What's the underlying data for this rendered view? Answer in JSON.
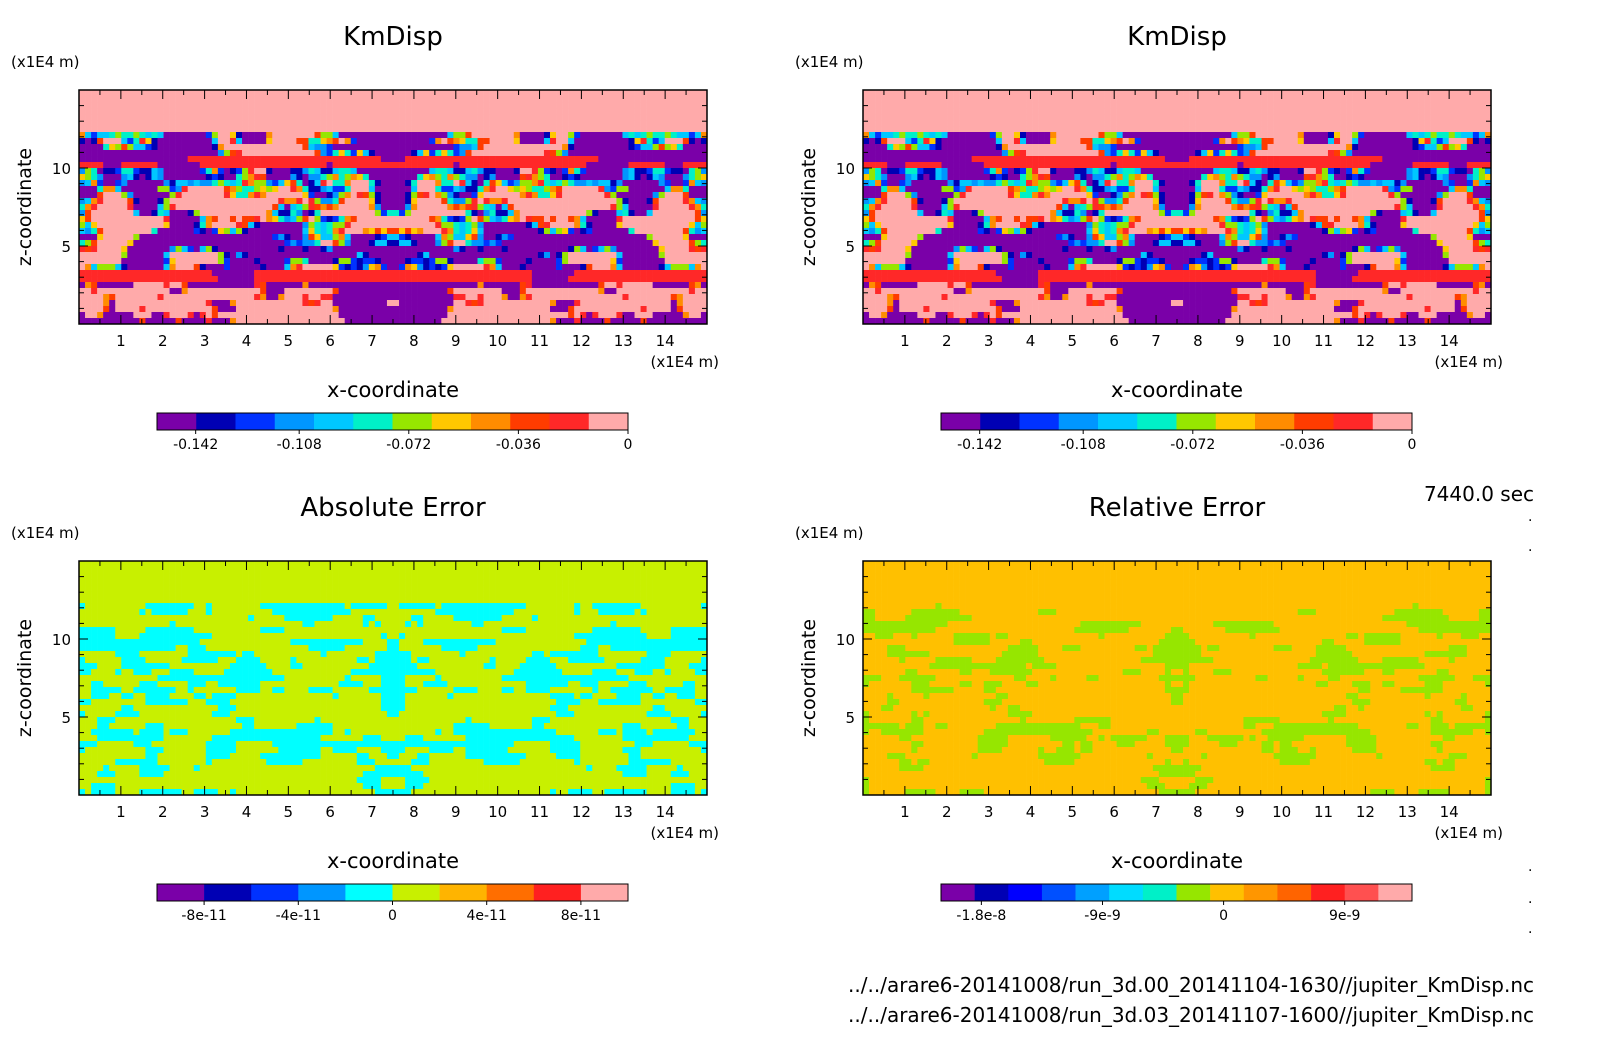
{
  "time_label": "7440.0 sec",
  "file_paths": [
    "../../arare6-20141008/run_3d.00_20141104-1630//jupiter_KmDisp.nc",
    "../../arare6-20141008/run_3d.03_20141107-1600//jupiter_KmDisp.nc"
  ],
  "chart_data": [
    {
      "type": "heatmap",
      "title": "KmDisp",
      "xlabel": "x-coordinate",
      "ylabel": "z-coordinate",
      "x_unit": "(x1E4 m)",
      "y_unit": "(x1E4 m)",
      "xlim": [
        0,
        15
      ],
      "ylim": [
        0,
        15
      ],
      "x_ticks": [
        1,
        2,
        3,
        4,
        5,
        6,
        7,
        8,
        9,
        10,
        11,
        12,
        13,
        14
      ],
      "y_ticks": [
        5,
        10
      ],
      "colorbar": {
        "colors": [
          "#7a00a8",
          "#0000b4",
          "#0032ff",
          "#0096ff",
          "#00c8ff",
          "#00f0c8",
          "#96e600",
          "#ffc800",
          "#ff8c00",
          "#ff3c00",
          "#ff2828",
          "#ffaaaa"
        ],
        "tick_values": [
          -0.142,
          -0.108,
          -0.072,
          -0.036,
          0
        ],
        "tick_labels": [
          "-0.142",
          "-0.108",
          "-0.072",
          "-0.036",
          "0"
        ],
        "range": [
          -0.1547,
          0
        ]
      },
      "pattern": "field"
    },
    {
      "type": "heatmap",
      "title": "KmDisp",
      "xlabel": "x-coordinate",
      "ylabel": "z-coordinate",
      "x_unit": "(x1E4 m)",
      "y_unit": "(x1E4 m)",
      "xlim": [
        0,
        15
      ],
      "ylim": [
        0,
        15
      ],
      "x_ticks": [
        1,
        2,
        3,
        4,
        5,
        6,
        7,
        8,
        9,
        10,
        11,
        12,
        13,
        14
      ],
      "y_ticks": [
        5,
        10
      ],
      "colorbar": {
        "colors": [
          "#7a00a8",
          "#0000b4",
          "#0032ff",
          "#0096ff",
          "#00c8ff",
          "#00f0c8",
          "#96e600",
          "#ffc800",
          "#ff8c00",
          "#ff3c00",
          "#ff2828",
          "#ffaaaa"
        ],
        "tick_values": [
          -0.142,
          -0.108,
          -0.072,
          -0.036,
          0
        ],
        "tick_labels": [
          "-0.142",
          "-0.108",
          "-0.072",
          "-0.036",
          "0"
        ],
        "range": [
          -0.1547,
          0
        ]
      },
      "pattern": "field"
    },
    {
      "type": "heatmap",
      "title": "Absolute Error",
      "xlabel": "x-coordinate",
      "ylabel": "z-coordinate",
      "x_unit": "(x1E4 m)",
      "y_unit": "(x1E4 m)",
      "xlim": [
        0,
        15
      ],
      "ylim": [
        0,
        15
      ],
      "x_ticks": [
        1,
        2,
        3,
        4,
        5,
        6,
        7,
        8,
        9,
        10,
        11,
        12,
        13,
        14
      ],
      "y_ticks": [
        5,
        10
      ],
      "colorbar": {
        "colors": [
          "#7a00a8",
          "#0000b4",
          "#0032ff",
          "#0096ff",
          "#00ffff",
          "#c8f000",
          "#ffb400",
          "#ff6e00",
          "#ff2020",
          "#ffaaaa"
        ],
        "tick_values": [
          -8e-11,
          -4e-11,
          0,
          4e-11,
          8e-11
        ],
        "tick_labels": [
          "-8e-11",
          "-4e-11",
          "0",
          "4e-11",
          "8e-11"
        ],
        "range": [
          -1e-10,
          1e-10
        ]
      },
      "pattern": "abs"
    },
    {
      "type": "heatmap",
      "title": "Relative Error",
      "xlabel": "x-coordinate",
      "ylabel": "z-coordinate",
      "x_unit": "(x1E4 m)",
      "y_unit": "(x1E4 m)",
      "xlim": [
        0,
        15
      ],
      "ylim": [
        0,
        15
      ],
      "x_ticks": [
        1,
        2,
        3,
        4,
        5,
        6,
        7,
        8,
        9,
        10,
        11,
        12,
        13,
        14
      ],
      "y_ticks": [
        5,
        10
      ],
      "colorbar": {
        "colors": [
          "#7a00a8",
          "#0000b4",
          "#0000ff",
          "#0050ff",
          "#00a0ff",
          "#00dcff",
          "#00f0c8",
          "#96e600",
          "#ffc000",
          "#ff9600",
          "#ff6400",
          "#ff2020",
          "#ff5050",
          "#ffaaaa"
        ],
        "tick_values": [
          -1.8e-08,
          -9e-09,
          0,
          9e-09
        ],
        "tick_labels": [
          "-1.8e-8",
          "-9e-9",
          "0",
          "9e-9"
        ],
        "range": [
          -2.1e-08,
          1.4e-08
        ]
      },
      "pattern": "rel"
    }
  ]
}
